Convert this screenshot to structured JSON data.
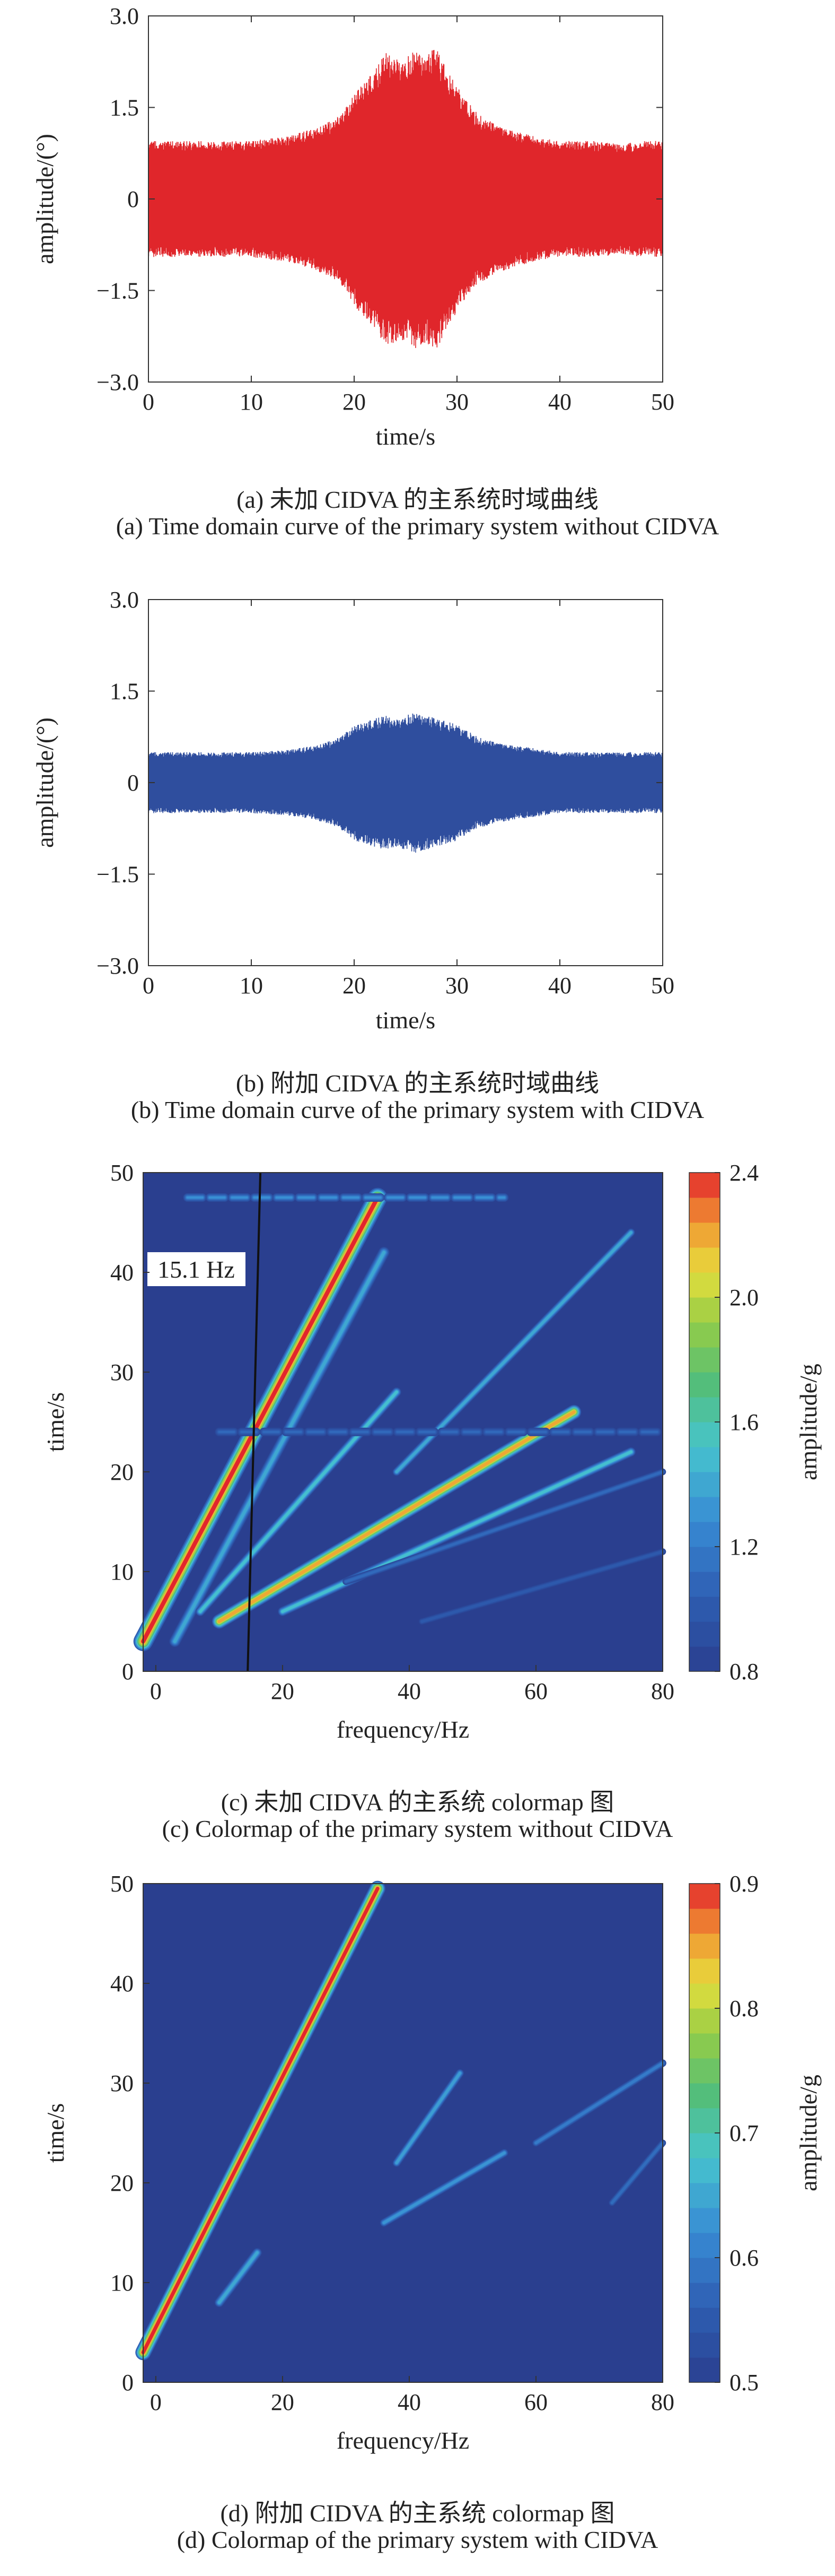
{
  "chart_data": [
    {
      "type": "line",
      "id": "a",
      "xlabel": "time/s",
      "ylabel": "amplitude/(°)",
      "xlim": [
        0,
        50
      ],
      "ylim": [
        -3.0,
        3.0
      ],
      "xticks": [
        "0",
        "10",
        "20",
        "30",
        "40",
        "50"
      ],
      "yticks": [
        "3.0",
        "1.5",
        "0",
        "−1.5",
        "−3.0"
      ],
      "color": "#e0262b",
      "envelope_time": [
        0,
        2,
        5,
        8,
        10,
        12,
        14,
        16,
        18,
        19,
        20,
        21,
        22,
        23,
        24,
        25,
        26,
        27,
        28,
        29,
        30,
        31,
        32,
        34,
        36,
        38,
        40,
        42,
        44,
        46,
        48,
        50
      ],
      "envelope_amp": [
        0.95,
        0.95,
        0.95,
        0.95,
        0.95,
        1.0,
        1.05,
        1.15,
        1.3,
        1.45,
        1.75,
        1.95,
        2.1,
        2.4,
        2.35,
        2.3,
        2.45,
        2.35,
        2.5,
        2.1,
        1.85,
        1.6,
        1.4,
        1.2,
        1.1,
        1.0,
        0.95,
        0.95,
        0.95,
        0.9,
        0.95,
        0.95
      ],
      "caption_cn": "(a) 未加 CIDVA 的主系统时域曲线",
      "caption_en": "(a) Time domain curve of the primary system without CIDVA"
    },
    {
      "type": "line",
      "id": "b",
      "xlabel": "time/s",
      "ylabel": "amplitude/(°)",
      "xlim": [
        0,
        50
      ],
      "ylim": [
        -3.0,
        3.0
      ],
      "xticks": [
        "0",
        "10",
        "20",
        "30",
        "40",
        "50"
      ],
      "yticks": [
        "3.0",
        "1.5",
        "0",
        "−1.5",
        "−3.0"
      ],
      "color": "#2f4e9e",
      "envelope_time": [
        0,
        2,
        5,
        8,
        10,
        12,
        14,
        16,
        18,
        19,
        20,
        21,
        22,
        23,
        24,
        25,
        26,
        27,
        28,
        29,
        30,
        31,
        32,
        34,
        36,
        38,
        40,
        42,
        44,
        46,
        48,
        50
      ],
      "envelope_amp": [
        0.5,
        0.5,
        0.5,
        0.5,
        0.5,
        0.52,
        0.55,
        0.6,
        0.7,
        0.8,
        0.95,
        1.0,
        1.05,
        1.1,
        1.05,
        1.1,
        1.15,
        1.1,
        1.05,
        1.0,
        0.95,
        0.85,
        0.75,
        0.65,
        0.6,
        0.55,
        0.5,
        0.5,
        0.5,
        0.5,
        0.5,
        0.5
      ],
      "caption_cn": "(b) 附加 CIDVA 的主系统时域曲线",
      "caption_en": "(b) Time domain curve of the primary system with CIDVA"
    },
    {
      "type": "heatmap",
      "id": "c",
      "xlabel": "frequency/Hz",
      "ylabel": "time/s",
      "clabel": "amplitude/g",
      "xlim": [
        -2,
        80
      ],
      "ylim": [
        0,
        50
      ],
      "xticks": [
        "0",
        "20",
        "40",
        "60",
        "80"
      ],
      "yticks": [
        "0",
        "10",
        "20",
        "30",
        "40",
        "50"
      ],
      "crange": [
        0.8,
        2.4
      ],
      "cticks": [
        "0.8",
        "1.2",
        "1.6",
        "2.0",
        "2.4"
      ],
      "background": "#2a3f8f",
      "ridges": [
        {
          "f0": -2,
          "t0": 3,
          "f1": 35,
          "t1": 47.5,
          "peak": 2.4,
          "width": 2.8
        },
        {
          "f0": 3,
          "t0": 3,
          "f1": 36,
          "t1": 42,
          "peak": 1.4,
          "width": 1.5
        },
        {
          "f0": 7,
          "t0": 6,
          "f1": 38,
          "t1": 28,
          "peak": 1.5,
          "width": 1.2
        },
        {
          "f0": 10,
          "t0": 5,
          "f1": 66,
          "t1": 26,
          "peak": 2.2,
          "width": 2.0
        },
        {
          "f0": 20,
          "t0": 6,
          "f1": 75,
          "t1": 22,
          "peak": 1.5,
          "width": 1.2
        },
        {
          "f0": 38,
          "t0": 20,
          "f1": 75,
          "t1": 44,
          "peak": 1.4,
          "width": 1.0
        },
        {
          "f0": 30,
          "t0": 9,
          "f1": 80,
          "t1": 20,
          "peak": 1.1,
          "width": 0.8
        },
        {
          "f0": 42,
          "t0": 5,
          "f1": 80,
          "t1": 12,
          "peak": 1.0,
          "width": 0.8
        }
      ],
      "bands": [
        {
          "t": 47.5,
          "f0": 5,
          "f1": 55,
          "peak": 1.3
        },
        {
          "t": 24,
          "f0": 10,
          "f1": 80,
          "peak": 1.1
        }
      ],
      "annotation_line": {
        "f0": 14.5,
        "t0": 0,
        "f1": 16.5,
        "t1": 50
      },
      "annotation_label": "15.1 Hz",
      "caption_cn": "(c) 未加 CIDVA 的主系统 colormap 图",
      "caption_en": "(c) Colormap of the primary system without CIDVA"
    },
    {
      "type": "heatmap",
      "id": "d",
      "xlabel": "frequency/Hz",
      "ylabel": "time/s",
      "clabel": "amplitude/g",
      "xlim": [
        -2,
        80
      ],
      "ylim": [
        0,
        50
      ],
      "xticks": [
        "0",
        "20",
        "40",
        "60",
        "80"
      ],
      "yticks": [
        "0",
        "10",
        "20",
        "30",
        "40",
        "50"
      ],
      "crange": [
        0.5,
        0.9
      ],
      "cticks": [
        "0.5",
        "0.6",
        "0.7",
        "0.8",
        "0.9"
      ],
      "background": "#2a3f8f",
      "ridges": [
        {
          "f0": -2,
          "t0": 3,
          "f1": 35,
          "t1": 49.5,
          "peak": 0.9,
          "width": 2.2
        },
        {
          "f0": 10,
          "t0": 8,
          "f1": 16,
          "t1": 13,
          "peak": 0.65,
          "width": 1.2
        },
        {
          "f0": 38,
          "t0": 22,
          "f1": 48,
          "t1": 31,
          "peak": 0.64,
          "width": 1.0
        },
        {
          "f0": 36,
          "t0": 16,
          "f1": 55,
          "t1": 23,
          "peak": 0.63,
          "width": 1.0
        },
        {
          "f0": 60,
          "t0": 24,
          "f1": 80,
          "t1": 32,
          "peak": 0.6,
          "width": 0.9
        },
        {
          "f0": 72,
          "t0": 18,
          "f1": 80,
          "t1": 24,
          "peak": 0.58,
          "width": 0.8
        }
      ],
      "bands": [],
      "caption_cn": "(d) 附加 CIDVA 的主系统 colormap 图",
      "caption_en": "(d) Colormap of the primary system with CIDVA"
    }
  ]
}
